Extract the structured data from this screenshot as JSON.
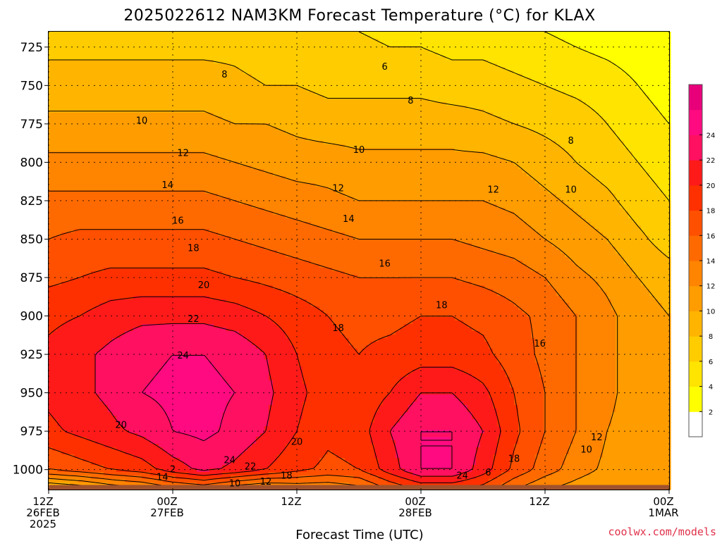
{
  "chart_data": {
    "type": "heatmap",
    "title": "2025022612 NAM3KM Forecast Temperature (°C) for KLAX",
    "xlabel": "Forecast Time (UTC)",
    "ylabel": "",
    "x_unit": "hours since 2025-02-26 12Z",
    "xlim": [
      0,
      60
    ],
    "ylim": [
      1013,
      715
    ],
    "y_scale": "linear, pressure (hPa) increasing downward",
    "grid": "dotted",
    "y_ticks": [
      725,
      750,
      775,
      800,
      825,
      850,
      875,
      900,
      925,
      950,
      975,
      1000
    ],
    "x_ticks": [
      {
        "x": 0,
        "label": "12Z",
        "day": "26FEB",
        "year": "2025"
      },
      {
        "x": 12,
        "label": "00Z",
        "day": "27FEB",
        "year": ""
      },
      {
        "x": 24,
        "label": "12Z",
        "day": "",
        "year": ""
      },
      {
        "x": 36,
        "label": "00Z",
        "day": "28FEB",
        "year": ""
      },
      {
        "x": 48,
        "label": "12Z",
        "day": "",
        "year": ""
      },
      {
        "x": 60,
        "label": "00Z",
        "day": "1MAR",
        "year": ""
      }
    ],
    "contour_levels": [
      2,
      4,
      6,
      8,
      10,
      12,
      14,
      16,
      18,
      20,
      22,
      24
    ],
    "surface_color": "#a0522d",
    "colorbar": {
      "labels": [
        2,
        4,
        6,
        8,
        10,
        12,
        14,
        16,
        18,
        20,
        22,
        24
      ],
      "colors": [
        "#ffffff",
        "#ffff00",
        "#ffe400",
        "#ffcc00",
        "#ffb400",
        "#ff9c00",
        "#ff8400",
        "#ff6a00",
        "#ff5000",
        "#ff3000",
        "#ff1a1a",
        "#ff1060",
        "#ff0a80",
        "#e8007a"
      ]
    },
    "temperature_model": {
      "note": "temperature (deg C) sampled on the time-pressure grid",
      "pressure_levels": [
        715,
        725,
        750,
        775,
        800,
        825,
        850,
        875,
        900,
        925,
        950,
        975,
        1000,
        1013
      ],
      "times": [
        0,
        3,
        6,
        9,
        12,
        15,
        18,
        21,
        24,
        27,
        30,
        33,
        36,
        39,
        42,
        45,
        48,
        51,
        54,
        57,
        60
      ],
      "values": [
        [
          7,
          7,
          7,
          7,
          7,
          7,
          7,
          6.5,
          6.5,
          6,
          6,
          5.5,
          5.5,
          5,
          5,
          4.5,
          4,
          3.5,
          3,
          2.5,
          2
        ],
        [
          7.5,
          7.5,
          7.5,
          7.5,
          7.5,
          7.5,
          7.5,
          7,
          7,
          6.5,
          6.5,
          6,
          6,
          5.5,
          5.5,
          5,
          4.5,
          4,
          3.5,
          3,
          2
        ],
        [
          9,
          9,
          9,
          9,
          9,
          9,
          8.5,
          8,
          8,
          7.5,
          7.5,
          7.5,
          7.5,
          7,
          7,
          6.5,
          6,
          5.5,
          5,
          4,
          3
        ],
        [
          10.5,
          10.5,
          10.5,
          10.5,
          10.5,
          10.5,
          10,
          10,
          9.5,
          9,
          9,
          9,
          9,
          9,
          8.5,
          8,
          7.5,
          7,
          6,
          5,
          4
        ],
        [
          12.5,
          12.5,
          12.5,
          12.5,
          12.5,
          12.5,
          12,
          11.5,
          11,
          11,
          10.5,
          10.5,
          10.5,
          10.5,
          10.5,
          10,
          9,
          8,
          7,
          6,
          5
        ],
        [
          14.5,
          14.5,
          14.5,
          14.5,
          14.5,
          14.5,
          14,
          13.5,
          13,
          12.5,
          12,
          12,
          12,
          12,
          12,
          11.5,
          10.5,
          9.5,
          8.5,
          7,
          6
        ],
        [
          16,
          16.5,
          16.5,
          16.5,
          16.5,
          16.5,
          16,
          15.5,
          15,
          14.5,
          14,
          14,
          14,
          14,
          13.5,
          13,
          12,
          11,
          10,
          8.5,
          7
        ],
        [
          17.5,
          18,
          18.5,
          18.5,
          18.5,
          18.5,
          18,
          17.5,
          17,
          16.5,
          16,
          16,
          16,
          16,
          15.5,
          15,
          14,
          12.5,
          11.5,
          10,
          9
        ],
        [
          19.5,
          20,
          21,
          21.5,
          21.5,
          21.5,
          21,
          20,
          19,
          18,
          17.5,
          17.5,
          18,
          18,
          17.5,
          16.5,
          15.5,
          14,
          12.5,
          11,
          10
        ],
        [
          20.5,
          21.5,
          22.5,
          23.5,
          24,
          24,
          23.5,
          22,
          20,
          18.5,
          18,
          18.5,
          19,
          19,
          18.5,
          17,
          15.5,
          14,
          12.5,
          11,
          10
        ],
        [
          20.5,
          21.5,
          22.5,
          24,
          24.5,
          24.5,
          24,
          22.5,
          20.5,
          19,
          18.5,
          20,
          22,
          22,
          20.5,
          18,
          16,
          14,
          12.5,
          11,
          10
        ],
        [
          19.5,
          20.5,
          21.5,
          22.5,
          24,
          24.5,
          23.5,
          22,
          20,
          18.5,
          19,
          22,
          24,
          24,
          22,
          18.5,
          16,
          14,
          12,
          11,
          10
        ],
        [
          16,
          17,
          18,
          19,
          21,
          22.5,
          21.5,
          20,
          18.5,
          17.5,
          18,
          21,
          24,
          24,
          21,
          17.5,
          15,
          13,
          11.5,
          11,
          10.5
        ],
        [
          7,
          8,
          10,
          11,
          13,
          14,
          12,
          11,
          12,
          12,
          13,
          16,
          18,
          18,
          17,
          14,
          12,
          11,
          10,
          10,
          10
        ]
      ]
    },
    "contour_labels": [
      {
        "value": "6",
        "x": 32.5,
        "p": 738
      },
      {
        "value": "8",
        "x": 17,
        "p": 743
      },
      {
        "value": "8",
        "x": 35,
        "p": 760
      },
      {
        "value": "8",
        "x": 50.5,
        "p": 786
      },
      {
        "value": "10",
        "x": 9,
        "p": 773
      },
      {
        "value": "10",
        "x": 30,
        "p": 792
      },
      {
        "value": "10",
        "x": 50.5,
        "p": 818
      },
      {
        "value": "10",
        "x": 52,
        "p": 987
      },
      {
        "value": "12",
        "x": 13,
        "p": 794
      },
      {
        "value": "12",
        "x": 28,
        "p": 817
      },
      {
        "value": "12",
        "x": 43,
        "p": 818
      },
      {
        "value": "12",
        "x": 53,
        "p": 979
      },
      {
        "value": "12",
        "x": 21,
        "p": 1008
      },
      {
        "value": "14",
        "x": 11.5,
        "p": 815
      },
      {
        "value": "14",
        "x": 29,
        "p": 837
      },
      {
        "value": "14",
        "x": 11,
        "p": 1005
      },
      {
        "value": "16",
        "x": 12.5,
        "p": 838
      },
      {
        "value": "16",
        "x": 32.5,
        "p": 866
      },
      {
        "value": "16",
        "x": 47.5,
        "p": 918
      },
      {
        "value": "18",
        "x": 14,
        "p": 856
      },
      {
        "value": "18",
        "x": 28,
        "p": 908
      },
      {
        "value": "18",
        "x": 38,
        "p": 893
      },
      {
        "value": "18",
        "x": 45,
        "p": 993
      },
      {
        "value": "18",
        "x": 23,
        "p": 1004
      },
      {
        "value": "20",
        "x": 15,
        "p": 880
      },
      {
        "value": "20",
        "x": 7,
        "p": 971
      },
      {
        "value": "20",
        "x": 24,
        "p": 982
      },
      {
        "value": "22",
        "x": 14,
        "p": 902
      },
      {
        "value": "22",
        "x": 19.5,
        "p": 998
      },
      {
        "value": "24",
        "x": 13,
        "p": 926
      },
      {
        "value": "24",
        "x": 17.5,
        "p": 994
      },
      {
        "value": "24",
        "x": 40,
        "p": 1004
      },
      {
        "value": "6",
        "x": 42.5,
        "p": 1002
      },
      {
        "value": "2",
        "x": 12,
        "p": 1000
      },
      {
        "value": "10",
        "x": 18,
        "p": 1009
      }
    ]
  },
  "credit": "coolwx.com/models"
}
